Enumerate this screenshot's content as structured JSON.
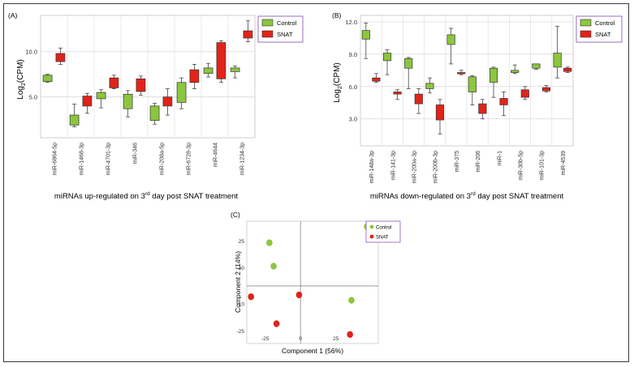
{
  "colors": {
    "control": "#8cc63f",
    "snat": "#e2231a",
    "grid": "#dadada",
    "legend_border": "#9c6bc2",
    "axis": "#888888"
  },
  "legend": {
    "control": "Control",
    "snat": "SNAT"
  },
  "chart_data": [
    {
      "id": "A",
      "type": "box",
      "panel_label": "(A)",
      "ylabel_main": "Log",
      "ylabel_sub": "2",
      "ylabel_tail": "(CPM)",
      "xlabel_pre": "miRNAs up-regulated on 3",
      "xlabel_sup": "rd",
      "xlabel_post": " day post SNAT treatment",
      "ylim": [
        0.5,
        14.0
      ],
      "yticks": [
        5.0,
        10.0
      ],
      "ytick_labels": [
        "5.0",
        "10.0"
      ],
      "categories": [
        "miR-6864-5p",
        "miR-1468-3p",
        "miR-4701-3p",
        "miR-346",
        "miR-208a-5p",
        "miR-6728-3p",
        "miR-4644",
        "miR-1234-3p"
      ],
      "series": [
        {
          "name": "Control",
          "boxes": [
            {
              "min": 6.6,
              "q1": 6.7,
              "q3": 7.4,
              "max": 7.5
            },
            {
              "min": 1.7,
              "q1": 1.9,
              "q3": 3.0,
              "max": 4.2
            },
            {
              "min": 3.8,
              "q1": 4.8,
              "q3": 5.5,
              "max": 5.8
            },
            {
              "min": 2.8,
              "q1": 3.7,
              "q3": 5.3,
              "max": 5.7
            },
            {
              "min": 2.0,
              "q1": 2.4,
              "q3": 4.0,
              "max": 4.3
            },
            {
              "min": 3.7,
              "q1": 4.4,
              "q3": 6.6,
              "max": 7.1
            },
            {
              "min": 7.2,
              "q1": 7.6,
              "q3": 8.2,
              "max": 8.7
            },
            {
              "min": 7.1,
              "q1": 7.8,
              "q3": 8.2,
              "max": 8.4
            }
          ]
        },
        {
          "name": "SNAT",
          "boxes": [
            {
              "min": 8.6,
              "q1": 8.9,
              "q3": 9.8,
              "max": 10.4
            },
            {
              "min": 3.2,
              "q1": 4.0,
              "q3": 5.1,
              "max": 5.4
            },
            {
              "min": 5.9,
              "q1": 6.0,
              "q3": 7.1,
              "max": 7.4
            },
            {
              "min": 5.2,
              "q1": 5.6,
              "q3": 7.0,
              "max": 7.3
            },
            {
              "min": 3.0,
              "q1": 4.0,
              "q3": 5.0,
              "max": 5.9
            },
            {
              "min": 5.9,
              "q1": 6.6,
              "q3": 8.0,
              "max": 8.6
            },
            {
              "min": 6.6,
              "q1": 7.0,
              "q3": 11.0,
              "max": 11.2
            },
            {
              "min": 11.1,
              "q1": 11.5,
              "q3": 12.3,
              "max": 13.4
            }
          ]
        }
      ]
    },
    {
      "id": "B",
      "type": "box",
      "panel_label": "(B)",
      "ylabel_main": "Log",
      "ylabel_sub": "2",
      "ylabel_tail": "(CPM)",
      "xlabel_pre": "miRNAs down-regulated on 3",
      "xlabel_sup": "rd",
      "xlabel_post": " day post SNAT treatment",
      "ylim": [
        0.5,
        12.6
      ],
      "yticks": [
        3.0,
        6.0,
        9.0,
        12.0
      ],
      "ytick_labels": [
        "3.0",
        "6.0",
        "9.0",
        "12.0"
      ],
      "categories": [
        "miR-148a-3p",
        "miR-141-3p",
        "miR-200a-3p",
        "miR-200b-3p",
        "miR-375",
        "miR-206",
        "miR-1",
        "miR-30b-5p",
        "miR-101-3p",
        "miR-4539"
      ],
      "series": [
        {
          "name": "Control",
          "boxes": [
            {
              "min": 8.6,
              "q1": 10.4,
              "q3": 11.2,
              "max": 11.9
            },
            {
              "min": 7.1,
              "q1": 8.4,
              "q3": 9.1,
              "max": 9.4
            },
            {
              "min": 5.8,
              "q1": 7.7,
              "q3": 8.6,
              "max": 8.7
            },
            {
              "min": 5.4,
              "q1": 5.8,
              "q3": 6.3,
              "max": 6.8
            },
            {
              "min": 8.1,
              "q1": 9.9,
              "q3": 10.8,
              "max": 11.4
            },
            {
              "min": 4.3,
              "q1": 5.5,
              "q3": 6.9,
              "max": 7.0
            },
            {
              "min": 5.0,
              "q1": 6.4,
              "q3": 7.7,
              "max": 7.8
            },
            {
              "min": 7.2,
              "q1": 7.3,
              "q3": 7.5,
              "max": 8.0
            },
            {
              "min": 7.6,
              "q1": 7.7,
              "q3": 8.1,
              "max": 8.1
            },
            {
              "min": 6.8,
              "q1": 7.8,
              "q3": 9.1,
              "max": 11.6
            }
          ]
        },
        {
          "name": "SNAT",
          "boxes": [
            {
              "min": 6.4,
              "q1": 6.5,
              "q3": 6.8,
              "max": 7.2
            },
            {
              "min": 4.8,
              "q1": 5.3,
              "q3": 5.5,
              "max": 5.7
            },
            {
              "min": 3.5,
              "q1": 4.4,
              "q3": 5.3,
              "max": 5.8
            },
            {
              "min": 1.6,
              "q1": 2.9,
              "q3": 4.3,
              "max": 4.8
            },
            {
              "min": 7.1,
              "q1": 7.2,
              "q3": 7.3,
              "max": 7.5
            },
            {
              "min": 3.0,
              "q1": 3.5,
              "q3": 4.4,
              "max": 4.8
            },
            {
              "min": 3.3,
              "q1": 4.3,
              "q3": 4.9,
              "max": 5.5
            },
            {
              "min": 4.8,
              "q1": 5.0,
              "q3": 5.7,
              "max": 6.0
            },
            {
              "min": 5.5,
              "q1": 5.6,
              "q3": 5.9,
              "max": 6.1
            },
            {
              "min": 7.3,
              "q1": 7.4,
              "q3": 7.7,
              "max": 7.8
            }
          ]
        }
      ]
    },
    {
      "id": "C",
      "type": "scatter",
      "panel_label": "(C)",
      "xlabel": "Component 1 (56%)",
      "ylabel": "Component 2 (14%)",
      "xlim": [
        -38,
        55
      ],
      "ylim": [
        -32,
        36
      ],
      "xticks": [
        -25,
        0,
        25
      ],
      "xtick_labels": [
        "-25",
        "0",
        "25"
      ],
      "yticks": [
        -25,
        -10,
        10,
        25
      ],
      "ytick_labels": [
        "-25",
        "-10",
        "10",
        "25"
      ],
      "series": [
        {
          "name": "Control",
          "points": [
            [
              -22,
              24
            ],
            [
              -19,
              11
            ],
            [
              36,
              -8
            ],
            [
              47,
              33
            ]
          ]
        },
        {
          "name": "SNAT",
          "points": [
            [
              -35,
              -6
            ],
            [
              -1,
              -5
            ],
            [
              -17,
              -21
            ],
            [
              35,
              -27
            ]
          ]
        }
      ]
    }
  ]
}
